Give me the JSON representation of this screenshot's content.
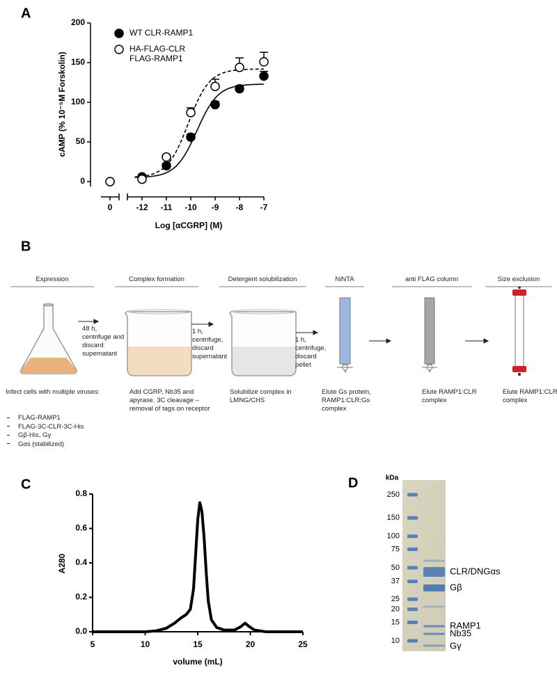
{
  "panel_labels": [
    "A",
    "B",
    "C",
    "D"
  ],
  "chart_data": [
    {
      "type": "dose_response",
      "xlabel": "Log [αCGRP] (M)",
      "ylabel": "cAMP (% 10⁻⁵M Forskolin)",
      "control_label": "0",
      "x": [
        -12,
        -11,
        -10,
        -9,
        -8,
        -7
      ],
      "xlim": [
        -12.6,
        -7
      ],
      "xticks": [
        -12,
        -11,
        -10,
        -9,
        -8,
        -7
      ],
      "ylim": [
        0,
        200
      ],
      "yticks": [
        0,
        50,
        100,
        150,
        200
      ],
      "series": [
        {
          "name": "WT CLR-RAMP1",
          "color": "#000000",
          "marker": "filled",
          "control_value": 0,
          "values": [
            6,
            20,
            56,
            97,
            117,
            133
          ],
          "errors": [
            2,
            3,
            4,
            4,
            4,
            6
          ],
          "fit": {
            "bottom": 5,
            "top": 123,
            "log_ec50": -9.75
          },
          "dash": false
        },
        {
          "name": "HA-FLAG-CLR\nFLAG-RAMP1",
          "color": "#000000",
          "marker": "open",
          "control_value": 0,
          "values": [
            3,
            31,
            87,
            120,
            144,
            151
          ],
          "errors": [
            2,
            3,
            6,
            9,
            12,
            12
          ],
          "fit": {
            "bottom": 5,
            "top": 142,
            "log_ec50": -10.1
          },
          "dash": true
        }
      ]
    },
    {
      "type": "line",
      "xlabel": "volume (mL)",
      "ylabel": "A280",
      "color": "#000000",
      "x": [
        5,
        8,
        10,
        11,
        12,
        12.8,
        13.4,
        13.9,
        14.3,
        14.6,
        14.8,
        15.0,
        15.2,
        15.4,
        15.6,
        15.8,
        16.0,
        16.3,
        16.8,
        17.5,
        18.5,
        19.1,
        19.5,
        19.9,
        20.4,
        21.5,
        25
      ],
      "values": [
        0,
        0,
        0,
        0.005,
        0.02,
        0.05,
        0.08,
        0.1,
        0.13,
        0.25,
        0.45,
        0.65,
        0.75,
        0.7,
        0.55,
        0.35,
        0.18,
        0.07,
        0.025,
        0.01,
        0.01,
        0.03,
        0.05,
        0.03,
        0.01,
        0,
        0
      ],
      "xlim": [
        5,
        25
      ],
      "xticks": [
        5,
        10,
        15,
        20,
        25
      ],
      "ylim": [
        0,
        0.8
      ],
      "yticks": [
        {
          "value": 0,
          "label": "0.0"
        },
        0.2,
        0.4,
        0.6,
        0.8
      ]
    }
  ],
  "workflow": {
    "steps": [
      {
        "title": "Expression",
        "description": "Infect cells with multiple viruses:",
        "items": [
          "FLAG-RAMP1",
          "FLAG-3C-CLR-3C-His",
          "Gβ-His, Gγ",
          "Gαs (stabilized)"
        ]
      },
      {
        "title": "Complex formation",
        "description": "Add CGRP, Nb35 and apyrase. 3C cleavage – removal of tags on receptor"
      },
      {
        "title": "Detergent solubilization",
        "description": "Solubilize  complex in LMNG/CHS"
      },
      {
        "title": "NiNTA",
        "description": "Elute Gs protein, RAMP1:CLR:Gs complex"
      },
      {
        "title": "anti FLAG column",
        "description": "Elute RAMP1:CLR complex"
      },
      {
        "title": "Size exclusion",
        "description": "Elute RAMP1:CLR complex"
      }
    ],
    "transitions": [
      "48 h, centrifuge and discard supernatant",
      "1 h, centrifuge, discard supernatant",
      "1 h, centrifuge, discard pellet"
    ]
  },
  "gel": {
    "unit": "kDa",
    "markers": [
      250,
      150,
      100,
      75,
      50,
      37,
      25,
      20,
      15,
      10
    ],
    "bands": [
      "CLR/DNGαs",
      "Gβ",
      "RAMP1",
      "Nb35",
      "Gγ"
    ]
  }
}
